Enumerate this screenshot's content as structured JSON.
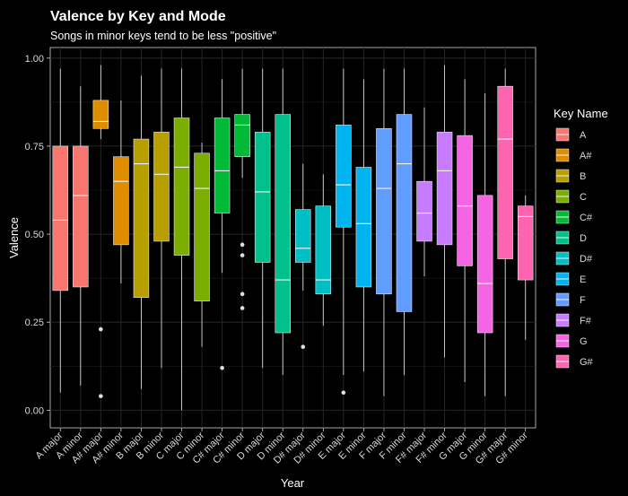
{
  "chart_data": {
    "type": "boxplot",
    "title": "Valence by Key and Mode",
    "subtitle": "Songs in minor keys tend to be less \"positive\"",
    "xlabel": "Year",
    "ylabel": "Valence",
    "ylim": [
      -0.05,
      1.03
    ],
    "yticks": [
      0.0,
      0.25,
      0.5,
      0.75,
      1.0
    ],
    "ytick_labels": [
      "0.00",
      "0.25",
      "0.50",
      "0.75",
      "1.00"
    ],
    "grid": true,
    "legend": {
      "title": "Key Name",
      "position": "right",
      "entries": [
        {
          "label": "A",
          "color": "#F8766D"
        },
        {
          "label": "A#",
          "color": "#DE8C00"
        },
        {
          "label": "B",
          "color": "#B79F00"
        },
        {
          "label": "C",
          "color": "#7CAE00"
        },
        {
          "label": "C#",
          "color": "#00BA38"
        },
        {
          "label": "D",
          "color": "#00C08B"
        },
        {
          "label": "D#",
          "color": "#00BFC4"
        },
        {
          "label": "E",
          "color": "#00B4F0"
        },
        {
          "label": "F",
          "color": "#619CFF"
        },
        {
          "label": "F#",
          "color": "#C77CFF"
        },
        {
          "label": "G",
          "color": "#F564E3"
        },
        {
          "label": "G#",
          "color": "#FF64B0"
        }
      ]
    },
    "categories": [
      "A major",
      "A minor",
      "A# major",
      "A# minor",
      "B major",
      "B minor",
      "C major",
      "C minor",
      "C# major",
      "C# minor",
      "D major",
      "D minor",
      "D# major",
      "D# minor",
      "E major",
      "E minor",
      "F major",
      "F minor",
      "F# major",
      "F# minor",
      "G major",
      "G minor",
      "G# major",
      "G# minor"
    ],
    "boxes": [
      {
        "key": "A",
        "min": 0.05,
        "q1": 0.34,
        "median": 0.54,
        "q3": 0.75,
        "max": 0.97,
        "outliers": []
      },
      {
        "key": "A",
        "min": 0.07,
        "q1": 0.35,
        "median": 0.61,
        "q3": 0.75,
        "max": 0.92,
        "outliers": []
      },
      {
        "key": "A#",
        "min": 0.77,
        "q1": 0.8,
        "median": 0.82,
        "q3": 0.88,
        "max": 0.98,
        "outliers": [
          0.23,
          0.04
        ]
      },
      {
        "key": "A#",
        "min": 0.36,
        "q1": 0.47,
        "median": 0.65,
        "q3": 0.72,
        "max": 0.88,
        "outliers": []
      },
      {
        "key": "B",
        "min": 0.06,
        "q1": 0.32,
        "median": 0.7,
        "q3": 0.77,
        "max": 0.95,
        "outliers": []
      },
      {
        "key": "B",
        "min": 0.12,
        "q1": 0.48,
        "median": 0.67,
        "q3": 0.79,
        "max": 0.97,
        "outliers": []
      },
      {
        "key": "C",
        "min": 0.0,
        "q1": 0.44,
        "median": 0.69,
        "q3": 0.83,
        "max": 0.97,
        "outliers": []
      },
      {
        "key": "C",
        "min": 0.18,
        "q1": 0.31,
        "median": 0.63,
        "q3": 0.73,
        "max": 0.76,
        "outliers": []
      },
      {
        "key": "C#",
        "min": 0.39,
        "q1": 0.56,
        "median": 0.68,
        "q3": 0.83,
        "max": 0.94,
        "outliers": [
          0.12
        ]
      },
      {
        "key": "C#",
        "min": 0.66,
        "q1": 0.72,
        "median": 0.81,
        "q3": 0.84,
        "max": 0.97,
        "outliers": [
          0.47,
          0.44,
          0.33,
          0.29
        ]
      },
      {
        "key": "D",
        "min": 0.12,
        "q1": 0.42,
        "median": 0.62,
        "q3": 0.79,
        "max": 0.97,
        "outliers": []
      },
      {
        "key": "D",
        "min": 0.1,
        "q1": 0.22,
        "median": 0.37,
        "q3": 0.84,
        "max": 0.97,
        "outliers": []
      },
      {
        "key": "D#",
        "min": 0.34,
        "q1": 0.42,
        "median": 0.46,
        "q3": 0.57,
        "max": 0.7,
        "outliers": [
          0.18
        ]
      },
      {
        "key": "D#",
        "min": 0.24,
        "q1": 0.33,
        "median": 0.37,
        "q3": 0.58,
        "max": 0.67,
        "outliers": []
      },
      {
        "key": "E",
        "min": 0.1,
        "q1": 0.52,
        "median": 0.64,
        "q3": 0.81,
        "max": 0.97,
        "outliers": [
          0.05
        ]
      },
      {
        "key": "E",
        "min": 0.11,
        "q1": 0.35,
        "median": 0.53,
        "q3": 0.69,
        "max": 0.94,
        "outliers": []
      },
      {
        "key": "F",
        "min": 0.04,
        "q1": 0.33,
        "median": 0.63,
        "q3": 0.8,
        "max": 0.97,
        "outliers": []
      },
      {
        "key": "F",
        "min": 0.1,
        "q1": 0.28,
        "median": 0.7,
        "q3": 0.84,
        "max": 0.97,
        "outliers": []
      },
      {
        "key": "F#",
        "min": 0.38,
        "q1": 0.48,
        "median": 0.56,
        "q3": 0.65,
        "max": 0.86,
        "outliers": []
      },
      {
        "key": "F#",
        "min": 0.15,
        "q1": 0.47,
        "median": 0.68,
        "q3": 0.79,
        "max": 0.98,
        "outliers": []
      },
      {
        "key": "G",
        "min": 0.08,
        "q1": 0.41,
        "median": 0.58,
        "q3": 0.78,
        "max": 0.94,
        "outliers": []
      },
      {
        "key": "G",
        "min": 0.04,
        "q1": 0.22,
        "median": 0.36,
        "q3": 0.61,
        "max": 0.9,
        "outliers": []
      },
      {
        "key": "G#",
        "min": 0.04,
        "q1": 0.43,
        "median": 0.77,
        "q3": 0.92,
        "max": 0.97,
        "outliers": []
      },
      {
        "key": "G#",
        "min": 0.2,
        "q1": 0.37,
        "median": 0.55,
        "q3": 0.58,
        "max": 0.61,
        "outliers": []
      }
    ]
  }
}
